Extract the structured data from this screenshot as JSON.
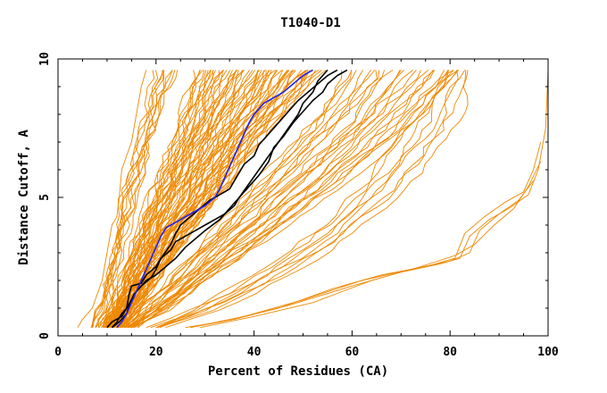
{
  "chart_data": {
    "type": "line",
    "title": "T1040-D1",
    "xlabel": "Percent of Residues (CA)",
    "ylabel": "Distance Cutoff, A",
    "xlim": [
      0,
      100
    ],
    "ylim": [
      0,
      10
    ],
    "x_ticks": [
      "0",
      "20",
      "40",
      "60",
      "80",
      "100"
    ],
    "y_ticks": [
      "0",
      "5",
      "10"
    ],
    "grid": false,
    "legend": "none",
    "colors": {
      "orange": "#ee8800",
      "black": "#000000",
      "blue": "#2222ee",
      "axis": "#000000"
    },
    "orange_bands": [
      {
        "name": "left-edge",
        "min": [
          [
            7,
            0.3
          ],
          [
            8,
            1
          ],
          [
            9.5,
            2
          ],
          [
            11,
            3
          ],
          [
            12,
            4
          ],
          [
            13,
            5
          ],
          [
            14.5,
            6
          ],
          [
            16,
            7
          ],
          [
            17.5,
            8
          ],
          [
            19,
            9
          ],
          [
            20,
            9.6
          ]
        ],
        "max": [
          [
            8.5,
            0.3
          ],
          [
            10,
            1
          ],
          [
            11.5,
            2
          ],
          [
            13,
            3
          ],
          [
            14.5,
            4
          ],
          [
            16,
            5
          ],
          [
            17.5,
            6
          ],
          [
            19,
            7
          ],
          [
            21,
            8
          ],
          [
            23,
            9
          ],
          [
            24,
            9.6
          ]
        ],
        "count": 10
      },
      {
        "name": "dense-main",
        "min": [
          [
            9,
            0.3
          ],
          [
            11,
            1
          ],
          [
            13,
            2
          ],
          [
            15,
            3
          ],
          [
            17,
            4
          ],
          [
            19,
            5
          ],
          [
            21,
            6
          ],
          [
            23,
            7
          ],
          [
            25,
            8
          ],
          [
            27,
            9
          ],
          [
            28,
            9.6
          ]
        ],
        "max": [
          [
            13,
            0.3
          ],
          [
            16,
            1
          ],
          [
            20,
            2
          ],
          [
            24,
            3
          ],
          [
            28,
            4
          ],
          [
            33,
            5
          ],
          [
            37,
            6
          ],
          [
            41,
            7
          ],
          [
            46,
            8
          ],
          [
            51,
            9
          ],
          [
            54,
            9.6
          ]
        ],
        "count": 65
      },
      {
        "name": "middle",
        "min": [
          [
            13,
            0.3
          ],
          [
            17,
            1
          ],
          [
            22,
            2
          ],
          [
            27,
            3
          ],
          [
            32,
            4
          ],
          [
            37,
            5
          ],
          [
            42,
            6
          ],
          [
            47,
            7
          ],
          [
            52,
            8
          ],
          [
            56,
            9
          ],
          [
            58,
            9.6
          ]
        ],
        "max": [
          [
            16,
            0.3
          ],
          [
            23,
            1
          ],
          [
            31,
            2
          ],
          [
            39,
            3
          ],
          [
            47,
            4
          ],
          [
            55,
            5
          ],
          [
            62,
            6
          ],
          [
            69,
            7
          ],
          [
            75,
            8
          ],
          [
            80,
            9
          ],
          [
            83,
            9.6
          ]
        ],
        "count": 26
      },
      {
        "name": "right-spread",
        "min": [
          [
            18,
            0.3
          ],
          [
            28,
            1
          ],
          [
            38,
            2
          ],
          [
            46,
            3
          ],
          [
            53,
            4
          ],
          [
            59,
            5
          ],
          [
            64,
            6
          ],
          [
            68,
            7
          ],
          [
            72,
            8
          ],
          [
            76,
            9
          ],
          [
            78,
            9.6
          ]
        ],
        "max": [
          [
            22,
            0.3
          ],
          [
            33,
            1
          ],
          [
            45,
            2
          ],
          [
            56,
            3
          ],
          [
            63,
            4
          ],
          [
            70,
            5
          ],
          [
            75,
            6
          ],
          [
            79,
            7
          ],
          [
            82,
            8
          ],
          [
            83,
            9
          ],
          [
            84,
            9.6
          ]
        ],
        "count": 8
      }
    ],
    "orange_singles": [
      {
        "name": "far-left",
        "x": [
          4,
          5,
          7,
          9,
          10,
          11,
          12,
          12.5,
          13,
          15,
          16,
          17,
          18
        ],
        "y": [
          0.3,
          0.6,
          1,
          2,
          3,
          4,
          4.3,
          5,
          6,
          7,
          8,
          9,
          9.6
        ]
      },
      {
        "name": "bottom-right-1",
        "x": [
          27,
          36,
          47,
          60,
          70,
          78,
          82,
          84,
          88,
          92,
          96,
          98,
          99.5,
          100
        ],
        "y": [
          0.3,
          0.6,
          1.1,
          1.8,
          2.3,
          2.6,
          2.8,
          3.6,
          4.2,
          4.6,
          5.1,
          6,
          7.5,
          9.6
        ]
      },
      {
        "name": "bottom-right-2",
        "x": [
          26,
          33,
          45,
          56,
          66,
          75,
          81,
          83,
          87,
          91,
          95,
          97,
          98.5
        ],
        "y": [
          0.3,
          0.5,
          1,
          1.7,
          2.2,
          2.5,
          2.8,
          3.7,
          4.3,
          4.8,
          5.2,
          6,
          7
        ]
      },
      {
        "name": "bottom-right-3",
        "x": [
          27,
          38,
          50,
          62,
          72,
          80,
          84,
          86,
          90,
          94,
          97
        ],
        "y": [
          0.3,
          0.7,
          1.3,
          2,
          2.4,
          2.7,
          3,
          3.8,
          4.4,
          4.9,
          5.6
        ]
      },
      {
        "name": "bottom-right-4",
        "x": [
          29,
          40,
          52,
          64,
          74,
          81,
          85,
          89,
          93,
          96,
          98.5
        ],
        "y": [
          0.3,
          0.7,
          1.2,
          2,
          2.5,
          2.9,
          3.3,
          4,
          4.6,
          5.4,
          6.3
        ]
      }
    ],
    "series": [
      {
        "color": "#000000",
        "x": [
          10,
          11,
          13,
          14,
          14.5,
          15,
          17,
          18,
          20,
          21,
          23,
          24,
          27,
          30,
          32,
          34,
          36,
          37,
          39,
          41,
          43,
          45,
          47,
          49,
          50,
          52,
          53,
          55
        ],
        "y": [
          0.3,
          0.5,
          0.7,
          1,
          1.5,
          1.8,
          1.9,
          2.2,
          2.5,
          2.8,
          3.1,
          3.4,
          3.7,
          4,
          4.2,
          4.4,
          4.7,
          5,
          5.5,
          6,
          6.5,
          7,
          7.5,
          8,
          8.4,
          8.8,
          9.2,
          9.6
        ]
      },
      {
        "color": "#000000",
        "x": [
          11,
          12,
          13,
          14,
          15,
          16,
          18,
          20,
          22,
          24,
          26,
          28,
          30,
          33,
          35,
          37,
          39,
          41,
          43,
          44,
          46,
          48,
          50,
          52,
          54,
          55,
          57,
          59
        ],
        "y": [
          0.3,
          0.5,
          0.8,
          1,
          1.3,
          1.6,
          2,
          2.2,
          2.5,
          2.8,
          3.2,
          3.5,
          3.8,
          4.2,
          4.6,
          5,
          5.4,
          5.8,
          6.3,
          6.8,
          7.2,
          7.7,
          8.1,
          8.5,
          8.8,
          9.1,
          9.4,
          9.6
        ]
      },
      {
        "color": "#000000",
        "x": [
          11,
          12.5,
          14,
          14.5,
          15.5,
          17,
          19,
          20,
          21,
          23,
          24,
          25,
          27,
          29,
          31,
          33,
          35,
          36,
          37,
          38,
          40,
          41,
          43,
          45,
          47,
          49,
          51,
          53,
          55,
          57
        ],
        "y": [
          0.3,
          0.5,
          0.8,
          1.1,
          1.5,
          1.8,
          2.1,
          2.4,
          2.8,
          3.3,
          3.7,
          4,
          4.3,
          4.6,
          4.9,
          5.1,
          5.3,
          5.6,
          5.9,
          6.2,
          6.5,
          6.9,
          7.3,
          7.7,
          8.1,
          8.5,
          8.8,
          9.1,
          9.4,
          9.6
        ]
      },
      {
        "color": "#2222ee",
        "x": [
          12,
          13,
          14,
          15,
          16,
          17,
          18,
          19,
          20,
          21,
          22,
          24,
          26,
          28,
          30,
          32,
          33,
          34,
          35,
          36,
          37,
          38,
          39,
          40,
          41,
          42,
          44,
          46,
          48,
          50,
          52
        ],
        "y": [
          0.3,
          0.5,
          0.8,
          1.2,
          1.6,
          2,
          2.4,
          2.8,
          3.2,
          3.6,
          3.9,
          4.1,
          4.3,
          4.5,
          4.7,
          5,
          5.3,
          5.7,
          6.1,
          6.5,
          6.9,
          7.3,
          7.7,
          8,
          8.2,
          8.4,
          8.6,
          8.8,
          9.1,
          9.4,
          9.6
        ]
      }
    ]
  }
}
